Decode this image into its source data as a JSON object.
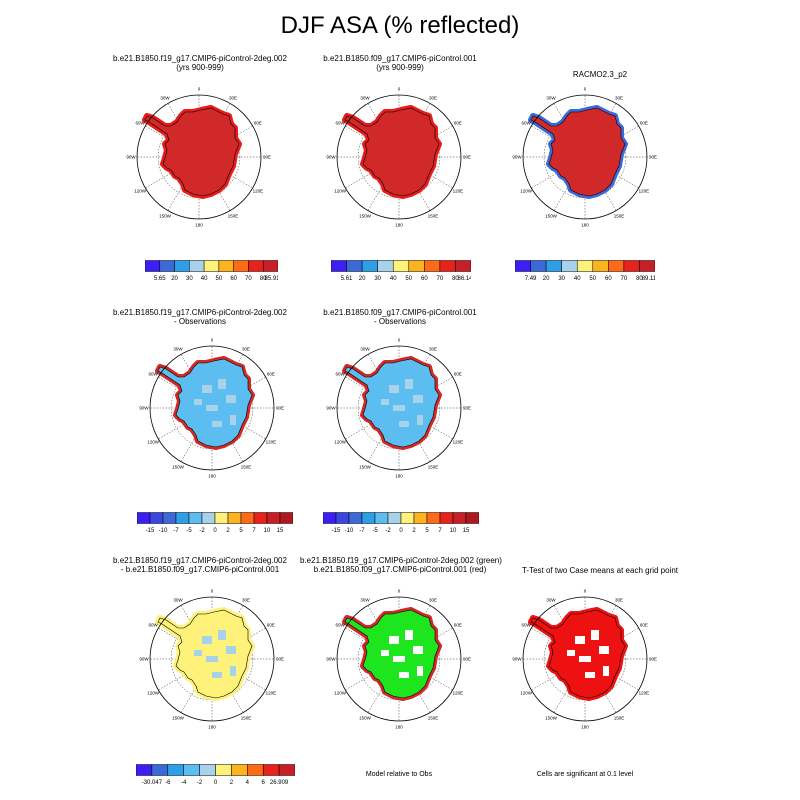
{
  "title": "DJF ASA (% reflected)",
  "panels": {
    "p1": {
      "line1": "b.e21.B1850.f19_g17.CMIP6-piControl-2deg.002",
      "line2": "(yrs 900-999)"
    },
    "p2": {
      "line1": "b.e21.B1850.f09_g17.CMIP6-piControl.001",
      "line2": "(yrs 900-999)"
    },
    "p3": {
      "line1": "RACMO2.3_p2",
      "line2": ""
    },
    "p4": {
      "line1": "b.e21.B1850.f19_g17.CMIP6-piControl-2deg.002",
      "line2": "- Observations"
    },
    "p5": {
      "line1": "b.e21.B1850.f09_g17.CMIP6-piControl.001",
      "line2": "- Observations"
    },
    "p7": {
      "line1": "b.e21.B1850.f19_g17.CMIP6-piControl-2deg.002",
      "line2": "- b.e21.B1850.f09_g17.CMIP6-piControl.001"
    },
    "p8": {
      "line1": "b.e21.B1850.f19_g17.CMIP6-piControl-2deg.002 (green)",
      "line2": "b.e21.B1850.f09_g17.CMIP6-piControl.001 (red)"
    },
    "p9": {
      "line1": "T-Test of two Case means at each grid point",
      "line2": ""
    }
  },
  "notes": {
    "p8": "Model relative to Obs",
    "p9": "Cells are significant at 0.1 level"
  },
  "lon_labels": [
    "0",
    "30E",
    "60E",
    "90E",
    "120E",
    "150E",
    "180",
    "150W",
    "120W",
    "90W",
    "60W",
    "30W"
  ],
  "colorbars": {
    "cb1": {
      "labels": [
        "5.65",
        "20",
        "30",
        "40",
        "50",
        "60",
        "70",
        "80",
        "85.91"
      ],
      "colors": [
        "#3b1ff5",
        "#3b6ad8",
        "#2c9fe8",
        "#a8d2ea",
        "#fff27a",
        "#fbb31e",
        "#ff6a17",
        "#e8221a",
        "#c81e26"
      ]
    },
    "cb2": {
      "labels": [
        "5.61",
        "20",
        "30",
        "40",
        "50",
        "60",
        "70",
        "80",
        "86.14"
      ],
      "colors": [
        "#3b1ff5",
        "#3b6ad8",
        "#2c9fe8",
        "#a8d2ea",
        "#fff27a",
        "#fbb31e",
        "#ff6a17",
        "#e8221a",
        "#c81e26"
      ]
    },
    "cb3": {
      "labels": [
        "7.49",
        "20",
        "30",
        "40",
        "50",
        "60",
        "70",
        "80",
        "89.11"
      ],
      "colors": [
        "#3b1ff5",
        "#3b6ad8",
        "#2c9fe8",
        "#a8d2ea",
        "#fff27a",
        "#fbb31e",
        "#ff6a17",
        "#e8221a",
        "#c81e26"
      ]
    },
    "cb4": {
      "labels": [
        "-15",
        "-10",
        "-7",
        "-5",
        "-2",
        "0",
        "2",
        "5",
        "7",
        "10",
        "15"
      ],
      "colors": [
        "#3b1ff5",
        "#3b45e0",
        "#3b6ad8",
        "#2c9fe8",
        "#5cbdf0",
        "#a8d2ea",
        "#fff27a",
        "#fbb31e",
        "#ff6a17",
        "#e8221a",
        "#c81e26",
        "#b01820"
      ]
    },
    "cb5": {
      "labels": [
        "-15",
        "-10",
        "-7",
        "-5",
        "-2",
        "0",
        "2",
        "5",
        "7",
        "10",
        "15"
      ],
      "colors": [
        "#3b1ff5",
        "#3b45e0",
        "#3b6ad8",
        "#2c9fe8",
        "#5cbdf0",
        "#a8d2ea",
        "#fff27a",
        "#fbb31e",
        "#ff6a17",
        "#e8221a",
        "#c81e26",
        "#b01820"
      ]
    },
    "cb7": {
      "labels": [
        "-30.047",
        "-6",
        "-4",
        "-2",
        "0",
        "2",
        "4",
        "6",
        "26.909"
      ],
      "colors": [
        "#3b1ff5",
        "#3b6ad8",
        "#2c9fe8",
        "#5cbdf0",
        "#a8d2ea",
        "#fff27a",
        "#fbb31e",
        "#ff6a17",
        "#e8221a",
        "#c81e26"
      ]
    }
  },
  "chart_data": {
    "type": "heatmap",
    "title": "DJF ASA (% reflected)",
    "maps": [
      {
        "panel": "b.e21.B1850.f19_g17.CMIP6-piControl-2deg.002 (yrs 900-999)",
        "min": 5.65,
        "max": 85.91,
        "dominant": "80-85.91"
      },
      {
        "panel": "b.e21.B1850.f09_g17.CMIP6-piControl.001 (yrs 900-999)",
        "min": 5.61,
        "max": 86.14,
        "dominant": "80-86.14"
      },
      {
        "panel": "RACMO2.3_p2",
        "min": 7.49,
        "max": 89.11,
        "dominant": "80-89.11"
      },
      {
        "panel": "f19 - Observations",
        "range": [
          -15,
          15
        ],
        "dominant": "-5 to -2"
      },
      {
        "panel": "f09 - Observations",
        "range": [
          -15,
          15
        ],
        "dominant": "-5 to -2"
      },
      {
        "panel": "f19 - f09",
        "min": -30.047,
        "max": 26.909,
        "dominant": "0 to 2"
      }
    ]
  }
}
